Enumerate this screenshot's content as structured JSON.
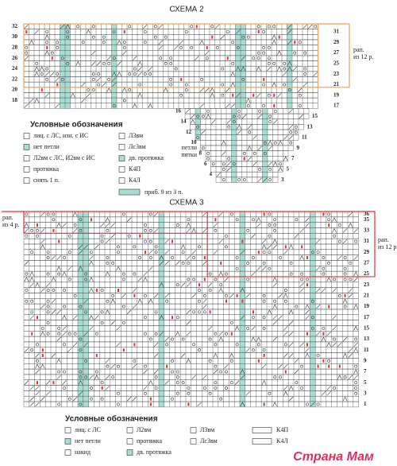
{
  "scheme2": {
    "title": "СХЕМА 2",
    "left_rows": [
      32,
      30,
      28,
      26,
      24,
      22,
      20,
      18
    ],
    "right_rows": [
      31,
      29,
      27,
      25,
      23,
      21,
      19,
      17
    ],
    "heel_left_rows": [
      16,
      14,
      12,
      10,
      8,
      6,
      4
    ],
    "heel_right_rows": [
      15,
      13,
      11,
      9,
      7,
      5,
      3
    ],
    "repeat_label": [
      "рап.",
      "из 12 р."
    ],
    "heel_label": [
      "петли",
      "пятки"
    ],
    "legend": {
      "title": "Условные обозначения",
      "col1": [
        "лиц. с ЛС, изн. с ИС",
        "нет петли",
        "Л2вм с ЛС, И2вм с ИС",
        "протяжка",
        "снять 1 п."
      ],
      "col2": [
        "Л3вм",
        "Лс3вм",
        "дв. протяжка",
        "К4П",
        "К4Л"
      ],
      "increase": "приб. 9 из 3 п."
    }
  },
  "scheme3": {
    "title": "СХЕМА 3",
    "right_rows": [
      36,
      35,
      33,
      31,
      29,
      27,
      25,
      23,
      21,
      19,
      17,
      15,
      13,
      11,
      9,
      7,
      5,
      3,
      1
    ],
    "repeat_right": [
      "рап.",
      "из 12 р."
    ],
    "repeat_left": [
      "рап.",
      "из 4 р."
    ],
    "legend": {
      "title": "Условные обозначения",
      "col1": [
        "лиц. с ЛС",
        "нет петли",
        "накид"
      ],
      "col2": [
        "Л2вм",
        "протяжка",
        "дв. протяжка"
      ],
      "col3": [
        "Л3вм",
        "Лс3вм"
      ],
      "col4": [
        "К4П",
        "К4Л"
      ]
    }
  },
  "watermark": "Страна Мам"
}
